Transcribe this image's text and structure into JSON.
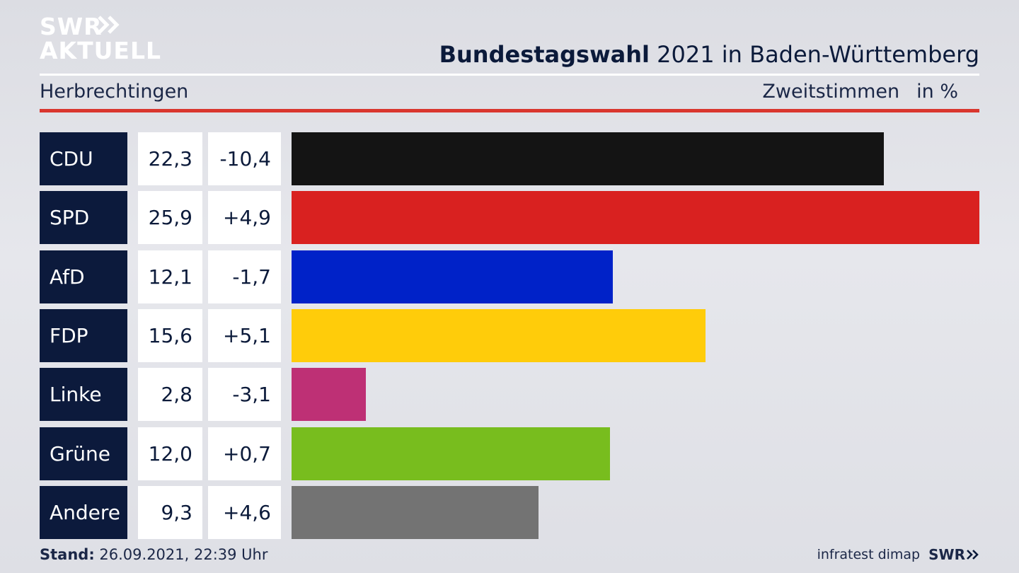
{
  "brand": {
    "line1": "SWR",
    "line2": "AKTUELL",
    "footer_logo": "SWR"
  },
  "header": {
    "title_bold": "Bundestagswahl",
    "title_rest": " 2021 in Baden-Württemberg",
    "place": "Herbrechtingen",
    "measure": "Zweitstimmen",
    "unit": "in %"
  },
  "footer": {
    "stand_label": "Stand:",
    "stand_value": " 26.09.2021, 22:39 Uhr",
    "source": "infratest dimap"
  },
  "chart_data": {
    "type": "bar",
    "orientation": "horizontal",
    "categories": [
      "CDU",
      "SPD",
      "AfD",
      "FDP",
      "Linke",
      "Grüne",
      "Andere"
    ],
    "values": [
      22.3,
      25.9,
      12.1,
      15.6,
      2.8,
      12.0,
      9.3
    ],
    "value_labels": [
      "22,3",
      "25,9",
      "12,1",
      "15,6",
      "2,8",
      "12,0",
      "9,3"
    ],
    "diff_labels": [
      "-10,4",
      "+4,9",
      "-1,7",
      "+5,1",
      "-3,1",
      "+0,7",
      "+4,6"
    ],
    "colors": [
      "#141414",
      "#d92120",
      "#0022c8",
      "#ffcc0a",
      "#be3075",
      "#78bd1e",
      "#737373"
    ],
    "xlim": [
      0,
      25.9
    ]
  }
}
